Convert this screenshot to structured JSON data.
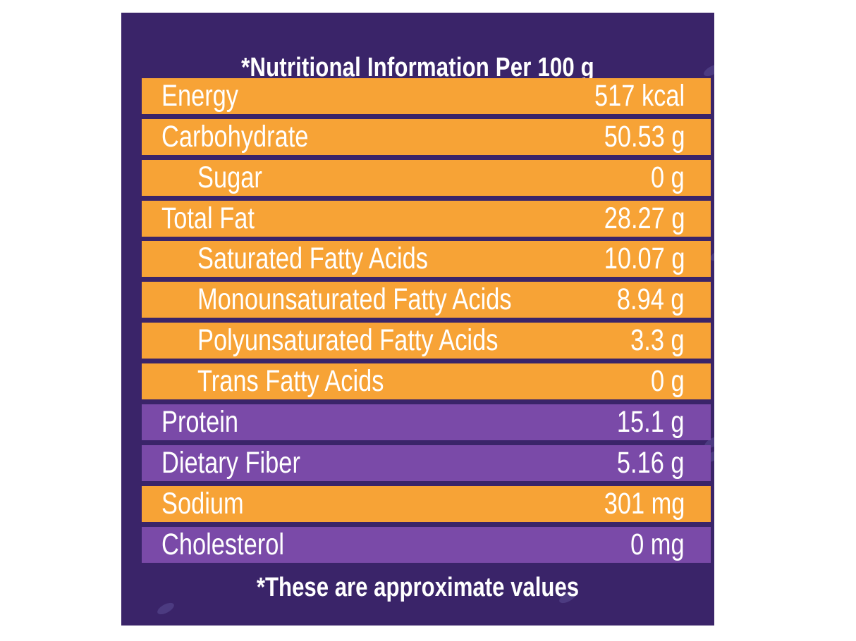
{
  "title": "*Nutritional Information Per 100 g",
  "rows": [
    {
      "label": "Energy",
      "value": "517 kcal",
      "color": "#f7a336",
      "indent": false
    },
    {
      "label": "Carbohydrate",
      "value": "50.53 g",
      "color": "#f7a336",
      "indent": false
    },
    {
      "label": "Sugar",
      "value": "0 g",
      "color": "#f7a336",
      "indent": true
    },
    {
      "label": "Total Fat",
      "value": "28.27 g",
      "color": "#f7a336",
      "indent": false
    },
    {
      "label": "Saturated Fatty Acids",
      "value": "10.07 g",
      "color": "#f7a336",
      "indent": true
    },
    {
      "label": "Monounsaturated Fatty Acids",
      "value": "8.94 g",
      "color": "#f7a336",
      "indent": true
    },
    {
      "label": "Polyunsaturated Fatty Acids",
      "value": "3.3 g",
      "color": "#f7a336",
      "indent": true
    },
    {
      "label": "Trans Fatty Acids",
      "value": "0 g",
      "color": "#f7a336",
      "indent": true
    },
    {
      "label": "Protein",
      "value": "15.1 g",
      "color": "#7a4aa8",
      "indent": false
    },
    {
      "label": "Dietary Fiber",
      "value": "5.16 g",
      "color": "#7a4aa8",
      "indent": false
    },
    {
      "label": "Sodium",
      "value": "301 mg",
      "color": "#f7a336",
      "indent": false
    },
    {
      "label": "Cholesterol",
      "value": "0 mg",
      "color": "#7a4aa8",
      "indent": false
    }
  ],
  "footer": "*These are approximate values",
  "colors": {
    "background": "#3a2469",
    "orange": "#f7a336",
    "purple": "#7a4aa8",
    "text": "#ffffff"
  }
}
